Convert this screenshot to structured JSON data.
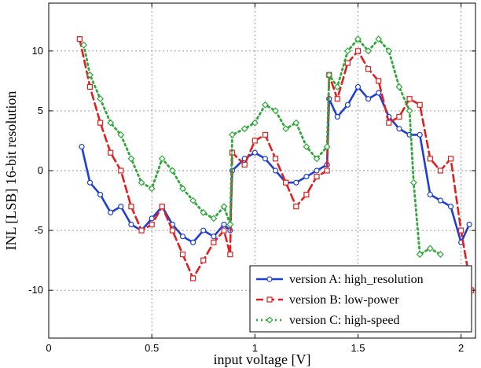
{
  "chart_data": {
    "type": "line",
    "xlabel": "input voltage [V]",
    "ylabel": "INL [LSB] 16-bit resolution",
    "xlim": [
      0,
      2.07
    ],
    "ylim": [
      -14,
      14
    ],
    "xticks": [
      0,
      0.5,
      1,
      1.5,
      2
    ],
    "xtick_labels": [
      "0",
      "0.5",
      "1",
      "1.5",
      "2"
    ],
    "yticks": [
      -10,
      -5,
      0,
      5,
      10
    ],
    "ytick_labels": [
      "-10",
      "-5",
      "0",
      "5",
      "10"
    ],
    "grid": true,
    "legend_position": "bottom-right",
    "series": [
      {
        "name": "version A: high_resolution",
        "color": "#1f3fd4",
        "line_style": "solid",
        "marker": "circle",
        "x": [
          0.16,
          0.2,
          0.25,
          0.3,
          0.35,
          0.4,
          0.45,
          0.5,
          0.55,
          0.6,
          0.65,
          0.7,
          0.75,
          0.8,
          0.85,
          0.88,
          0.89,
          0.95,
          1.0,
          1.05,
          1.1,
          1.15,
          1.2,
          1.25,
          1.3,
          1.35,
          1.36,
          1.4,
          1.45,
          1.5,
          1.55,
          1.6,
          1.65,
          1.7,
          1.75,
          1.8,
          1.85,
          1.9,
          1.95,
          2.0,
          2.04
        ],
        "y": [
          2.0,
          -1.0,
          -2.0,
          -3.5,
          -3.0,
          -4.5,
          -5.0,
          -4.0,
          -3.0,
          -4.5,
          -5.5,
          -6.0,
          -5.0,
          -5.5,
          -4.5,
          -5.0,
          0.0,
          1.0,
          1.5,
          1.0,
          0.0,
          -1.0,
          -1.0,
          -0.5,
          0.0,
          0.5,
          6.0,
          4.5,
          5.5,
          7.0,
          6.0,
          6.5,
          4.5,
          3.5,
          3.0,
          3.0,
          -2.0,
          -2.5,
          -3.0,
          -6.0,
          -4.5
        ]
      },
      {
        "name": "version B: low-power",
        "color": "#e02020",
        "line_style": "dashed",
        "marker": "square",
        "x": [
          0.15,
          0.2,
          0.25,
          0.3,
          0.35,
          0.4,
          0.45,
          0.5,
          0.55,
          0.6,
          0.65,
          0.7,
          0.75,
          0.8,
          0.85,
          0.88,
          0.89,
          0.95,
          1.0,
          1.05,
          1.1,
          1.15,
          1.2,
          1.25,
          1.3,
          1.35,
          1.36,
          1.4,
          1.45,
          1.5,
          1.55,
          1.6,
          1.65,
          1.7,
          1.75,
          1.8,
          1.85,
          1.9,
          1.95,
          2.0,
          2.05
        ],
        "y": [
          11.0,
          7.0,
          4.0,
          1.5,
          0.0,
          -3.0,
          -5.0,
          -4.5,
          -3.0,
          -5.0,
          -7.0,
          -9.0,
          -7.5,
          -6.0,
          -5.0,
          -7.0,
          1.5,
          0.5,
          2.5,
          3.0,
          1.0,
          -1.0,
          -3.0,
          -2.0,
          -0.5,
          0.0,
          8.0,
          6.0,
          9.0,
          10.0,
          8.5,
          7.5,
          4.0,
          4.5,
          6.0,
          5.5,
          1.0,
          0.0,
          1.0,
          -5.0,
          -10.0
        ]
      },
      {
        "name": "version C: high-speed",
        "color": "#2fa83a",
        "line_style": "dotted",
        "marker": "diamond",
        "x": [
          0.17,
          0.2,
          0.25,
          0.3,
          0.35,
          0.4,
          0.45,
          0.5,
          0.55,
          0.6,
          0.65,
          0.7,
          0.75,
          0.8,
          0.85,
          0.88,
          0.89,
          0.95,
          1.0,
          1.05,
          1.1,
          1.15,
          1.2,
          1.25,
          1.3,
          1.35,
          1.36,
          1.4,
          1.45,
          1.5,
          1.55,
          1.6,
          1.65,
          1.7,
          1.75,
          1.77,
          1.8,
          1.85,
          1.9
        ],
        "y": [
          10.5,
          8.0,
          6.0,
          4.0,
          3.0,
          1.0,
          -1.0,
          -1.5,
          1.0,
          0.0,
          -1.5,
          -2.5,
          -3.5,
          -4.0,
          -3.0,
          -4.5,
          3.0,
          3.5,
          4.0,
          5.5,
          5.0,
          3.5,
          4.0,
          2.0,
          1.0,
          2.0,
          8.0,
          7.0,
          10.0,
          11.0,
          10.0,
          11.0,
          10.0,
          7.0,
          5.0,
          -1.0,
          -7.0,
          -6.5,
          -7.0
        ]
      }
    ]
  }
}
